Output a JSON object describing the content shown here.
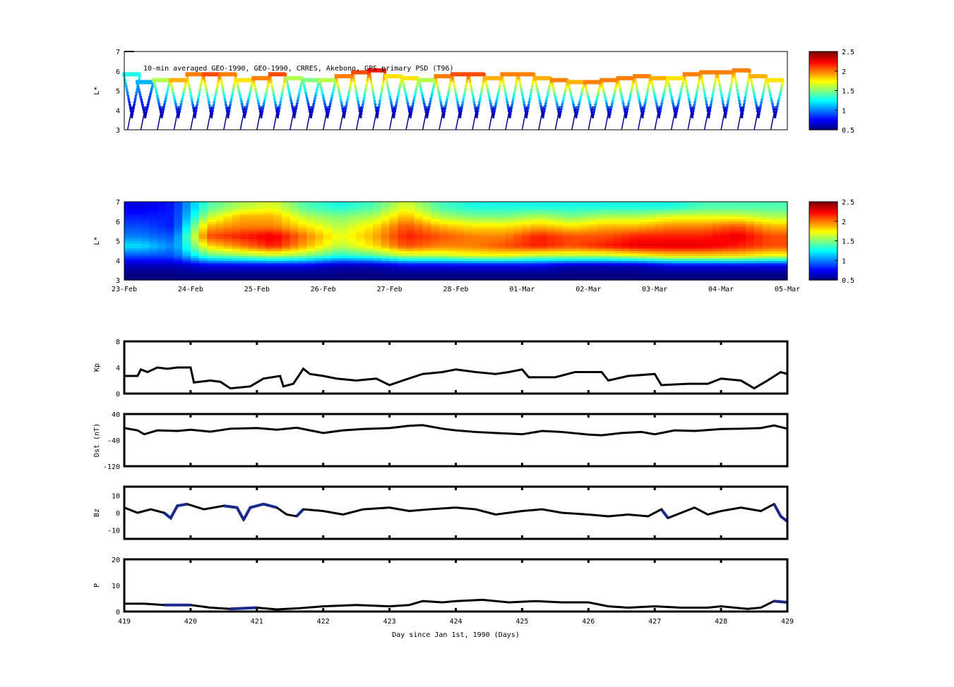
{
  "chart_data": [
    {
      "type": "heatmap",
      "name": "orbit-psd",
      "title": "10-min averaged GEO-1990, GEO-1990, CRRES, Akebono, GPS  primary PSD (T96)",
      "ylabel": "L*",
      "ylim": [
        3,
        7
      ],
      "yticks": [
        "3",
        "4",
        "5",
        "6",
        "7"
      ],
      "xlim": [
        419,
        429
      ],
      "colorbar": {
        "range": [
          0.5,
          2.5
        ],
        "ticks": [
          "0.5",
          "1",
          "1.5",
          "2",
          "2.5"
        ]
      },
      "pass_times": [
        419.1,
        419.3,
        419.55,
        419.8,
        420.05,
        420.3,
        420.55,
        420.8,
        421.05,
        421.3,
        421.55,
        421.8,
        422.05,
        422.3,
        422.55,
        422.8,
        423.05,
        423.3,
        423.55,
        423.8,
        424.05,
        424.3,
        424.55,
        424.8,
        425.05,
        425.3,
        425.55,
        425.8,
        426.05,
        426.3,
        426.55,
        426.8,
        427.05,
        427.3,
        427.55,
        427.8,
        428.05,
        428.3,
        428.55,
        428.8
      ],
      "top_L": [
        5.8,
        5.4,
        5.5,
        5.5,
        5.8,
        5.8,
        5.8,
        5.5,
        5.6,
        5.8,
        5.6,
        5.5,
        5.5,
        5.7,
        5.9,
        6.0,
        5.7,
        5.6,
        5.5,
        5.7,
        5.8,
        5.8,
        5.6,
        5.8,
        5.8,
        5.6,
        5.5,
        5.4,
        5.4,
        5.5,
        5.6,
        5.7,
        5.6,
        5.6,
        5.8,
        5.9,
        5.9,
        6.0,
        5.7,
        5.5
      ],
      "top_psd": [
        1.3,
        1.1,
        1.6,
        1.9,
        2.0,
        2.1,
        2.0,
        1.8,
        2.0,
        2.1,
        1.6,
        1.5,
        1.6,
        2.0,
        2.1,
        2.2,
        1.8,
        1.8,
        1.6,
        2.0,
        2.1,
        2.1,
        1.9,
        2.0,
        2.0,
        1.9,
        2.0,
        1.9,
        2.0,
        2.0,
        2.0,
        2.0,
        1.9,
        1.8,
        2.0,
        2.0,
        2.0,
        2.0,
        1.9,
        1.8
      ]
    },
    {
      "type": "heatmap",
      "name": "reanalysis-psd",
      "ylabel": "L*",
      "ylim": [
        3,
        7
      ],
      "yticks": [
        "3",
        "4",
        "5",
        "6",
        "7"
      ],
      "xlim": [
        419,
        429
      ],
      "xticklabels": [
        "23-Feb",
        "24-Feb",
        "25-Feb",
        "26-Feb",
        "27-Feb",
        "28-Feb",
        "01-Mar",
        "02-Mar",
        "03-Mar",
        "04-Mar",
        "05-Mar"
      ],
      "colorbar": {
        "range": [
          0.5,
          2.5
        ],
        "ticks": [
          "0.5",
          "1",
          "1.5",
          "2",
          "2.5"
        ]
      },
      "L_rows": [
        3.25,
        3.75,
        4.25,
        4.75,
        5.25,
        5.75,
        6.25,
        6.75
      ],
      "day_cols": [
        419,
        419.5,
        420,
        420.5,
        421,
        421.5,
        422,
        422.5,
        423,
        423.5,
        424,
        424.5,
        425,
        425.5,
        426,
        426.5,
        427,
        427.5,
        428,
        428.5
      ],
      "values": [
        [
          0.5,
          0.5,
          0.5,
          0.5,
          0.5,
          0.5,
          0.5,
          0.5,
          0.5,
          0.5,
          0.5,
          0.5,
          0.5,
          0.5,
          0.5,
          0.5,
          0.5,
          0.5,
          0.5,
          0.5
        ],
        [
          0.6,
          0.6,
          0.7,
          0.7,
          0.7,
          0.7,
          0.6,
          0.6,
          0.7,
          0.7,
          0.7,
          0.7,
          0.7,
          0.6,
          0.6,
          0.6,
          0.7,
          0.7,
          0.7,
          0.7
        ],
        [
          0.9,
          0.9,
          1.4,
          1.5,
          1.6,
          1.5,
          1.3,
          1.4,
          1.6,
          1.6,
          1.7,
          1.7,
          1.6,
          1.6,
          1.6,
          1.7,
          1.8,
          1.8,
          1.8,
          1.7
        ],
        [
          1.2,
          1.0,
          1.8,
          2.0,
          2.2,
          1.9,
          1.6,
          1.8,
          2.1,
          2.0,
          2.0,
          2.1,
          2.2,
          2.1,
          2.2,
          2.3,
          2.3,
          2.3,
          2.2,
          2.1
        ],
        [
          1.0,
          0.9,
          2.1,
          2.2,
          2.3,
          2.0,
          1.7,
          1.9,
          2.2,
          2.1,
          2.0,
          2.0,
          2.2,
          2.1,
          2.1,
          2.2,
          2.2,
          2.2,
          2.3,
          2.1
        ],
        [
          0.9,
          0.8,
          1.9,
          2.0,
          2.0,
          1.8,
          1.6,
          1.8,
          2.1,
          1.9,
          1.8,
          1.8,
          1.9,
          1.8,
          1.9,
          1.9,
          2.0,
          2.0,
          2.1,
          1.9
        ],
        [
          0.8,
          0.8,
          1.6,
          1.9,
          1.9,
          1.6,
          1.5,
          1.6,
          1.9,
          1.6,
          1.5,
          1.5,
          1.6,
          1.5,
          1.6,
          1.6,
          1.7,
          1.7,
          1.7,
          1.6
        ],
        [
          0.7,
          0.8,
          1.4,
          1.6,
          1.7,
          1.4,
          1.3,
          1.4,
          1.7,
          1.4,
          1.3,
          1.3,
          1.3,
          1.3,
          1.3,
          1.3,
          1.3,
          1.4,
          1.4,
          1.4
        ]
      ]
    },
    {
      "type": "line",
      "name": "kp",
      "ylabel": "Kp",
      "ylim": [
        0,
        8
      ],
      "yticks": [
        "0",
        "4",
        "8"
      ],
      "xlim": [
        419,
        429
      ],
      "x": [
        419,
        419.2,
        419.25,
        419.35,
        419.5,
        419.65,
        419.8,
        420,
        420.05,
        420.3,
        420.45,
        420.6,
        420.9,
        421.1,
        421.35,
        421.4,
        421.55,
        421.7,
        421.8,
        422,
        422.2,
        422.5,
        422.8,
        423,
        423.2,
        423.5,
        423.8,
        424,
        424.3,
        424.6,
        424.8,
        425,
        425.1,
        425.5,
        425.8,
        426.2,
        426.3,
        426.6,
        427,
        427.1,
        427.5,
        427.8,
        428,
        428.3,
        428.5,
        428.7,
        428.9,
        429
      ],
      "y": [
        2.7,
        2.7,
        3.7,
        3.3,
        4,
        3.8,
        4,
        4,
        1.7,
        2,
        1.8,
        0.8,
        1.1,
        2.3,
        2.7,
        1.1,
        1.5,
        3.8,
        3,
        2.7,
        2.3,
        2,
        2.3,
        1.3,
        2,
        3,
        3.3,
        3.7,
        3.3,
        3,
        3.3,
        3.7,
        2.5,
        2.5,
        3.3,
        3.3,
        2,
        2.7,
        3,
        1.3,
        1.5,
        1.5,
        2.3,
        2,
        0.8,
        2,
        3.3,
        3
      ]
    },
    {
      "type": "line",
      "name": "dst",
      "ylabel": "Dst (nT)",
      "ylim": [
        -120,
        40
      ],
      "yticks": [
        "-120",
        "-40",
        "40"
      ],
      "xlim": [
        419,
        429
      ],
      "x": [
        419,
        419.2,
        419.3,
        419.5,
        419.8,
        420,
        420.3,
        420.6,
        421,
        421.3,
        421.6,
        422,
        422.3,
        422.6,
        423,
        423.3,
        423.5,
        423.8,
        424,
        424.3,
        424.6,
        425,
        425.3,
        425.6,
        426,
        426.2,
        426.5,
        426.8,
        427,
        427.3,
        427.6,
        428,
        428.3,
        428.6,
        428.8,
        429
      ],
      "y": [
        -3,
        -10,
        -22,
        -10,
        -12,
        -8,
        -14,
        -5,
        -3,
        -8,
        -2,
        -18,
        -10,
        -6,
        -3,
        4,
        6,
        -5,
        -10,
        -15,
        -18,
        -22,
        -12,
        -15,
        -23,
        -25,
        -18,
        -15,
        -22,
        -10,
        -12,
        -6,
        -5,
        -3,
        5,
        -5
      ]
    },
    {
      "type": "line",
      "name": "bz",
      "ylabel": "Bz",
      "ylim": [
        -15,
        15
      ],
      "yticks": [
        "-10",
        "0",
        "10"
      ],
      "xlim": [
        419,
        429
      ],
      "x": [
        419,
        419.2,
        419.4,
        419.6,
        419.7,
        419.8,
        419.95,
        420.2,
        420.5,
        420.7,
        420.8,
        420.9,
        421.1,
        421.3,
        421.45,
        421.6,
        421.7,
        422,
        422.3,
        422.6,
        423,
        423.3,
        423.6,
        424,
        424.3,
        424.6,
        425,
        425.3,
        425.6,
        426,
        426.3,
        426.6,
        426.9,
        427.1,
        427.2,
        427.4,
        427.6,
        427.8,
        428,
        428.3,
        428.6,
        428.8,
        428.9,
        429
      ],
      "y": [
        3,
        0,
        2,
        0,
        -3,
        4,
        5,
        2,
        4,
        3,
        -4,
        3,
        5,
        3,
        -1,
        -2,
        2,
        1,
        -1,
        2,
        3,
        1,
        2,
        3,
        2,
        -1,
        1,
        2,
        0,
        -1,
        -2,
        -1,
        -2,
        2,
        -3,
        0,
        3,
        -1,
        1,
        3,
        1,
        5,
        -2,
        -5
      ],
      "highres_ranges": [
        [
          419.6,
          420.0
        ],
        [
          420.5,
          420.8
        ],
        [
          420.8,
          421.3
        ],
        [
          421.6,
          421.7
        ],
        [
          426.5,
          426.7
        ],
        [
          427.1,
          427.3
        ],
        [
          427.7,
          427.8
        ],
        [
          428.75,
          429
        ]
      ]
    },
    {
      "type": "line",
      "name": "pressure",
      "ylabel": "P",
      "ylim": [
        0,
        20
      ],
      "yticks": [
        "0",
        "10",
        "20"
      ],
      "xlim": [
        419,
        429
      ],
      "x": [
        419,
        419.3,
        419.6,
        420,
        420.3,
        420.6,
        421,
        421.3,
        421.6,
        422,
        422.5,
        423,
        423.3,
        423.5,
        423.8,
        424,
        424.4,
        424.8,
        425.2,
        425.6,
        426,
        426.3,
        426.6,
        427,
        427.4,
        427.8,
        428,
        428.4,
        428.6,
        428.8,
        429
      ],
      "y": [
        3,
        3,
        2.5,
        2.5,
        1.5,
        1,
        1.5,
        0.8,
        1.2,
        2,
        2.5,
        2,
        2.5,
        4,
        3.5,
        4,
        4.5,
        3.5,
        4,
        3.5,
        3.5,
        2,
        1.5,
        2,
        1.5,
        1.5,
        2,
        1,
        1.5,
        4,
        3.5
      ],
      "highres_ranges": [
        [
          419.6,
          420.0
        ],
        [
          420.5,
          421.1
        ],
        [
          421.6,
          421.7
        ],
        [
          428.7,
          429
        ]
      ]
    },
    {
      "xlabel": "Day since Jan 1st, 1990 (Days)",
      "xticks": [
        "419",
        "420",
        "421",
        "422",
        "423",
        "424",
        "425",
        "426",
        "427",
        "428",
        "429"
      ]
    }
  ]
}
